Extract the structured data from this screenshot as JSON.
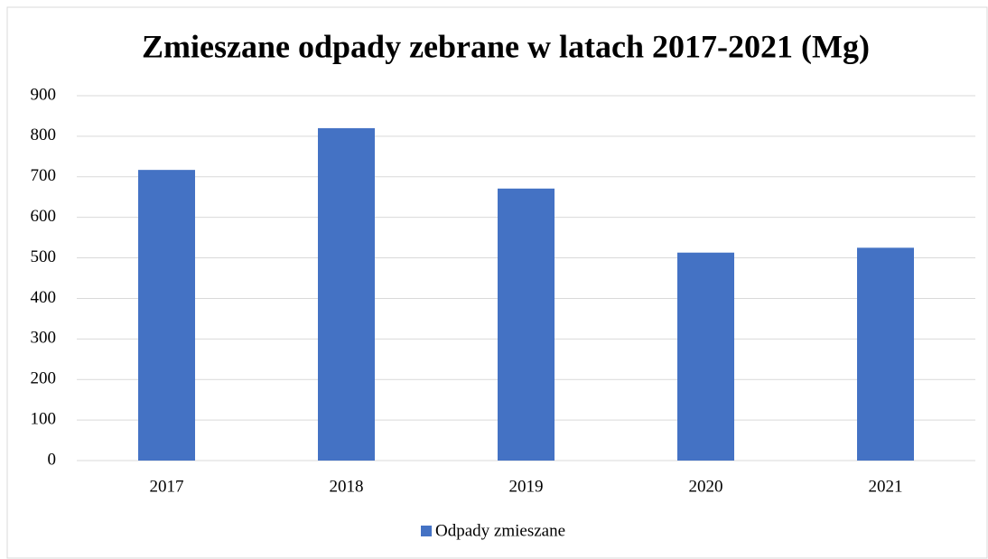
{
  "chart_data": {
    "type": "bar",
    "title": "Zmieszane odpady zebrane w latach 2017-2021 (Mg)",
    "categories": [
      "2017",
      "2018",
      "2019",
      "2020",
      "2021"
    ],
    "series": [
      {
        "name": "Odpady zmieszane",
        "color": "#4472c4",
        "values": [
          717,
          820,
          671,
          513,
          525
        ]
      }
    ],
    "ylim": [
      0,
      900
    ],
    "yticks": [
      0,
      100,
      200,
      300,
      400,
      500,
      600,
      700,
      800,
      900
    ],
    "grid": true,
    "legend": "bottom"
  }
}
